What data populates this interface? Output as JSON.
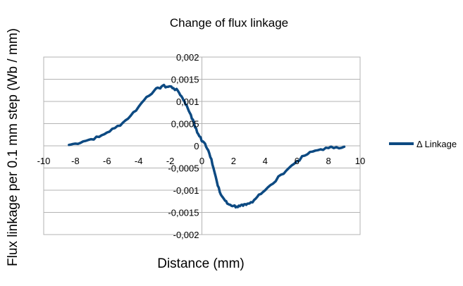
{
  "chart_data": {
    "type": "line",
    "title": "Change of flux linkage",
    "xlabel": "Distance (mm)",
    "ylabel": "Flux linkage per 0.1 mm step (Wb / mm)",
    "xlim": [
      -10,
      10
    ],
    "ylim": [
      -0.002,
      0.002
    ],
    "xticks": [
      "-10",
      "-8",
      "-6",
      "-4",
      "-2",
      "0",
      "2",
      "4",
      "6",
      "8",
      "10"
    ],
    "yticks": [
      "0,002",
      "0,0015",
      "0,001",
      "0,0005",
      "0",
      "-0,0005",
      "-0,001",
      "-0,0015",
      "-0,002"
    ],
    "grid": "horizontal",
    "legend": "right",
    "color": "#0d4a82",
    "series": [
      {
        "name": "Δ Linkage",
        "x": [
          -8.4,
          -8.0,
          -7.5,
          -7.0,
          -6.5,
          -6.0,
          -5.5,
          -5.0,
          -4.5,
          -4.0,
          -3.5,
          -3.0,
          -2.7,
          -2.5,
          -2.2,
          -2.0,
          -1.8,
          -1.5,
          -1.3,
          -1.1,
          -0.9,
          -0.7,
          -0.5,
          -0.3,
          -0.1,
          0.0,
          0.2,
          0.4,
          0.6,
          0.8,
          1.0,
          1.2,
          1.4,
          1.6,
          1.8,
          2.0,
          2.2,
          2.4,
          2.6,
          2.8,
          3.0,
          3.3,
          3.6,
          4.0,
          4.5,
          5.0,
          5.5,
          6.0,
          6.5,
          7.0,
          7.5,
          8.0,
          8.5,
          9.0
        ],
        "y": [
          2e-05,
          5e-05,
          0.0001,
          0.00015,
          0.0002,
          0.0003,
          0.0004,
          0.00052,
          0.00068,
          0.00088,
          0.0011,
          0.00125,
          0.0013,
          0.00135,
          0.00133,
          0.00134,
          0.0013,
          0.00123,
          0.00112,
          0.001,
          0.00085,
          0.0007,
          0.0005,
          0.0003,
          0.0002,
          0.0001,
          5e-05,
          -0.0001,
          -0.0003,
          -0.0006,
          -0.0009,
          -0.0011,
          -0.0012,
          -0.0013,
          -0.00133,
          -0.00135,
          -0.00137,
          -0.00136,
          -0.00135,
          -0.00133,
          -0.0013,
          -0.00122,
          -0.0011,
          -0.001,
          -0.00085,
          -0.00065,
          -0.0005,
          -0.00035,
          -0.00022,
          -0.00013,
          -8e-05,
          -5e-05,
          -3e-05,
          -2e-05
        ]
      }
    ]
  }
}
